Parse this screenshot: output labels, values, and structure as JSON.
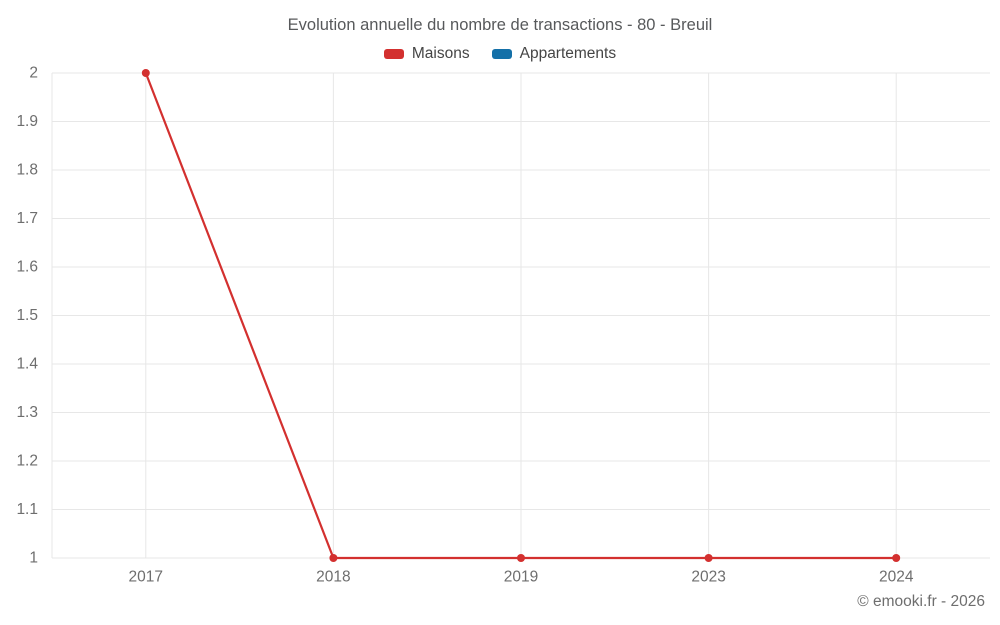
{
  "chart": {
    "title": "Evolution annuelle du nombre de transactions - 80 - Breuil"
  },
  "chart_data": {
    "type": "line",
    "title": "Evolution annuelle du nombre de transactions - 80 - Breuil",
    "categories": [
      "2017",
      "2018",
      "2019",
      "2023",
      "2024"
    ],
    "series": [
      {
        "name": "Maisons",
        "color": "#d3302f",
        "values": [
          2,
          1,
          1,
          1,
          1
        ]
      },
      {
        "name": "Appartements",
        "color": "#1470a8",
        "values": []
      }
    ],
    "xlabel": "",
    "ylabel": "",
    "ylim": [
      1,
      2
    ],
    "ytick_step": 0.1,
    "grid": true,
    "legend_position": "top"
  },
  "footer": {
    "copyright": "© emooki.fr - 2026"
  },
  "colors": {
    "title": "#57595b",
    "legend_text": "#454545",
    "axis_label": "#6e6e6e",
    "grid": "#e7e7e7",
    "background": "#ffffff"
  }
}
